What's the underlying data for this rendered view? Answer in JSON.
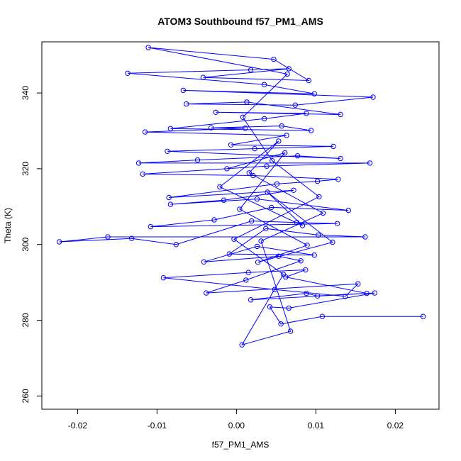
{
  "chart_data": {
    "type": "scatter",
    "title": "ATOM3 Southbound f57_PM1_AMS",
    "xlabel": "f57_PM1_AMS",
    "ylabel": "Theta (K)",
    "xlim": [
      -0.0245,
      0.0255
    ],
    "ylim": [
      256.5,
      353.5
    ],
    "xticks": [
      -0.02,
      -0.01,
      0.0,
      0.01,
      0.02
    ],
    "xtick_labels": [
      "-0.02",
      "-0.01",
      "0.00",
      "0.01",
      "0.02"
    ],
    "yticks": [
      260,
      280,
      300,
      320,
      340
    ],
    "ytick_labels": [
      "260",
      "280",
      "300",
      "320",
      "340"
    ],
    "grid": false,
    "legend": "none",
    "series_color": "#0000ff",
    "marker": "open-circle",
    "connected": true,
    "points": [
      [
        0.0235,
        281.0
      ],
      [
        0.0108,
        281.0
      ],
      [
        0.0056,
        279.0
      ],
      [
        0.0042,
        283.5
      ],
      [
        0.0066,
        283.2
      ],
      [
        0.0174,
        287.2
      ],
      [
        0.0018,
        285.4
      ],
      [
        0.0088,
        287.1
      ],
      [
        0.0102,
        286.4
      ],
      [
        0.0164,
        287.1
      ],
      [
        0.0062,
        291.4
      ],
      [
        0.0087,
        293.3
      ],
      [
        0.0015,
        292.6
      ],
      [
        -0.0092,
        291.2
      ],
      [
        0.0048,
        288.1
      ],
      [
        0.0137,
        286.3
      ],
      [
        0.0153,
        289.6
      ],
      [
        -0.0038,
        287.2
      ],
      [
        0.0012,
        290.6
      ],
      [
        0.0081,
        295.7
      ],
      [
        0.0053,
        296.9
      ],
      [
        -0.0041,
        295.4
      ],
      [
        0.0026,
        299.5
      ],
      [
        0.0098,
        297.2
      ],
      [
        -0.0009,
        297.5
      ],
      [
        0.0037,
        304.2
      ],
      [
        0.0103,
        302.5
      ],
      [
        0.0162,
        302.0
      ],
      [
        -0.0162,
        302.0
      ],
      [
        -0.0223,
        300.7
      ],
      [
        -0.0132,
        301.6
      ],
      [
        -0.0076,
        300.0
      ],
      [
        0.0019,
        306.2
      ],
      [
        0.0076,
        305.8
      ],
      [
        0.0127,
        305.5
      ],
      [
        -0.0108,
        304.7
      ],
      [
        -0.0028,
        306.5
      ],
      [
        0.0044,
        309.8
      ],
      [
        0.0141,
        309.0
      ],
      [
        0.0026,
        312.0
      ],
      [
        -0.0083,
        310.6
      ],
      [
        -0.0016,
        311.7
      ],
      [
        0.0072,
        314.3
      ],
      [
        -0.0085,
        312.4
      ],
      [
        0.0051,
        316.0
      ],
      [
        0.0102,
        316.7
      ],
      [
        0.0128,
        317.2
      ],
      [
        0.0021,
        318.2
      ],
      [
        -0.0118,
        318.6
      ],
      [
        0.0038,
        320.7
      ],
      [
        0.0168,
        321.5
      ],
      [
        -0.0123,
        321.5
      ],
      [
        -0.0049,
        322.3
      ],
      [
        0.0077,
        323.4
      ],
      [
        0.0131,
        322.7
      ],
      [
        -0.0087,
        324.6
      ],
      [
        0.0023,
        325.3
      ],
      [
        0.0122,
        325.9
      ],
      [
        -0.0007,
        326.3
      ],
      [
        0.0063,
        328.8
      ],
      [
        -0.0115,
        329.7
      ],
      [
        0.0011,
        330.7
      ],
      [
        -0.0032,
        330.8
      ],
      [
        0.0057,
        331.3
      ],
      [
        0.0094,
        330.1
      ],
      [
        -0.0083,
        330.6
      ],
      [
        0.0035,
        333.2
      ],
      [
        0.0088,
        334.6
      ],
      [
        -0.0026,
        334.9
      ],
      [
        0.0131,
        334.3
      ],
      [
        0.0013,
        337.6
      ],
      [
        -0.0063,
        337.1
      ],
      [
        0.0074,
        336.8
      ],
      [
        0.0172,
        338.9
      ],
      [
        -0.0067,
        340.7
      ],
      [
        0.0098,
        339.8
      ],
      [
        0.0035,
        342.2
      ],
      [
        -0.0137,
        345.2
      ],
      [
        0.0018,
        346.1
      ],
      [
        0.0066,
        346.4
      ],
      [
        -0.0042,
        344.1
      ],
      [
        0.0091,
        343.3
      ],
      [
        0.0047,
        348.9
      ],
      [
        -0.0111,
        352.0
      ],
      [
        0.0064,
        345.0
      ],
      [
        0.0008,
        333.6
      ],
      [
        0.0045,
        322.1
      ],
      [
        0.0104,
        312.6
      ],
      [
        -0.0003,
        301.4
      ],
      [
        0.0059,
        292.1
      ],
      [
        0.0007,
        273.5
      ],
      [
        0.0068,
        277.1
      ],
      [
        0.0031,
        300.9
      ],
      [
        0.0109,
        308.3
      ],
      [
        0.0016,
        318.9
      ],
      [
        0.0053,
        327.3
      ],
      [
        -0.0021,
        315.2
      ],
      [
        0.0083,
        305.0
      ],
      [
        0.0039,
        313.8
      ],
      [
        0.0121,
        300.6
      ],
      [
        0.0027,
        295.3
      ],
      [
        0.0089,
        299.8
      ],
      [
        0.0004,
        309.3
      ],
      [
        0.0061,
        324.2
      ],
      [
        -0.0012,
        320.0
      ]
    ]
  }
}
